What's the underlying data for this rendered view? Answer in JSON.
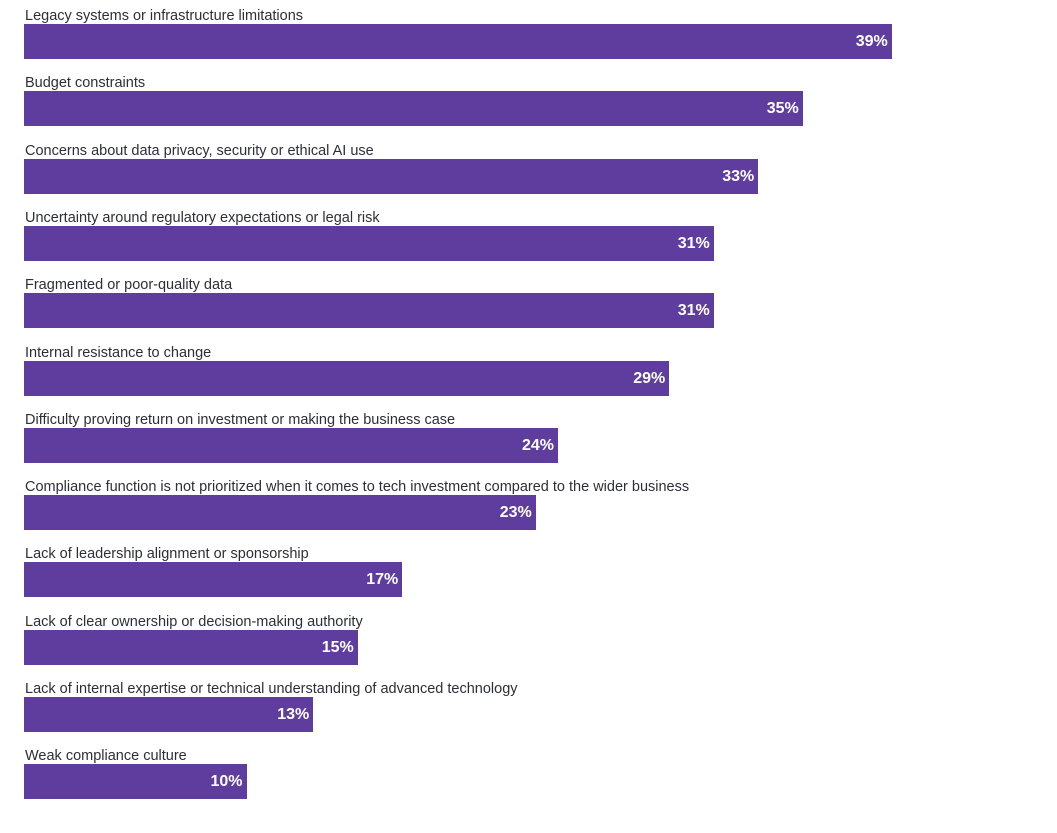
{
  "chart_data": {
    "type": "bar",
    "orientation": "horizontal",
    "title": "",
    "xlabel": "",
    "ylabel": "",
    "xlim": [
      0,
      45
    ],
    "categories": [
      "Legacy systems or infrastructure limitations",
      "Budget constraints",
      "Concerns about data privacy, security or ethical AI use",
      "Uncertainty around regulatory expectations or legal risk",
      "Fragmented or poor-quality data",
      "Internal resistance to change",
      "Difficulty proving return on investment or making the business case",
      "Compliance function is not prioritized when it comes to tech investment compared to the wider business",
      "Lack of leadership alignment or sponsorship",
      "Lack of clear ownership or decision-making authority",
      "Lack of internal expertise or technical understanding of advanced technology",
      "Weak compliance culture"
    ],
    "values": [
      39,
      35,
      33,
      31,
      31,
      29,
      24,
      23,
      17,
      15,
      13,
      10
    ],
    "value_labels": [
      "39%",
      "35%",
      "33%",
      "31%",
      "31%",
      "29%",
      "24%",
      "23%",
      "17%",
      "15%",
      "13%",
      "10%"
    ],
    "unit": "%",
    "grid": false,
    "legend": "none"
  },
  "colors": {
    "bar": "#5f3d9f",
    "label_text": "#2e2e38",
    "value_text": "#ffffff"
  }
}
